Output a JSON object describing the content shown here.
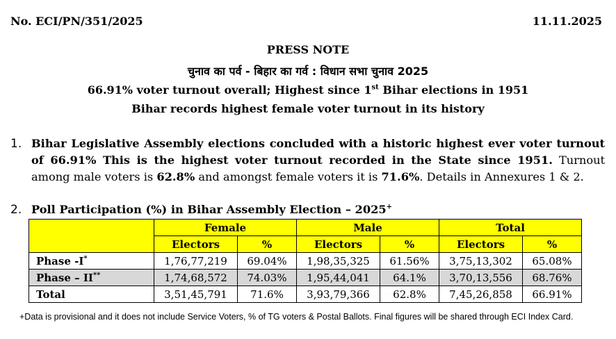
{
  "header": {
    "ref": "No. ECI/PN/351/2025",
    "date": "11.11.2025"
  },
  "title": "PRESS NOTE",
  "subtitle_hindi": "चुनाव का पर्व - बिहार का गर्व : विधान सभा चुनाव 2025",
  "headline1_pre": "66.91% voter turnout overall; Highest since 1",
  "headline1_sup": "st",
  "headline1_post": " Bihar elections in 1951",
  "headline2": "Bihar records highest female voter turnout in its history",
  "item1": {
    "num": "1.",
    "bold": "Bihar Legislative Assembly elections concluded with a historic highest ever voter turnout of 66.91% This is the highest voter turnout recorded in the State since 1951.",
    "t1": " Turnout among male voters is ",
    "male": "62.8%",
    "t2": " and amongst female voters it is ",
    "female": "71.6%",
    "t3": ". Details in Annexures 1 & 2."
  },
  "item2": {
    "num": "2.",
    "title": "Poll Participation (%) in Bihar Assembly Election – 2025",
    "sup": "+"
  },
  "table": {
    "groups": [
      "Female",
      "Male",
      "Total"
    ],
    "sub_electors": "Electors",
    "sub_pct": "%",
    "rows": [
      {
        "label": "Phase -I",
        "sup": "*",
        "cells": [
          "1,76,77,219",
          "69.04%",
          "1,98,35,325",
          "61.56%",
          "3,75,13,302",
          "65.08%"
        ]
      },
      {
        "label": "Phase – II",
        "sup": "**",
        "cells": [
          "1,74,68,572",
          "74.03%",
          "1,95,44,041",
          "64.1%",
          "3,70,13,556",
          "68.76%"
        ]
      },
      {
        "label": "Total",
        "sup": "",
        "cells": [
          "3,51,45,791",
          "71.6%",
          "3,93,79,366",
          "62.8%",
          "7,45,26,858",
          "66.91%"
        ]
      }
    ]
  },
  "footnote": "+Data is provisional and it does not include Service Voters, % of TG voters & Postal Ballots. Final figures will be shared through ECI Index Card.",
  "colors": {
    "header_fill": "#ffff00",
    "shaded_row": "#d8d8d8"
  }
}
